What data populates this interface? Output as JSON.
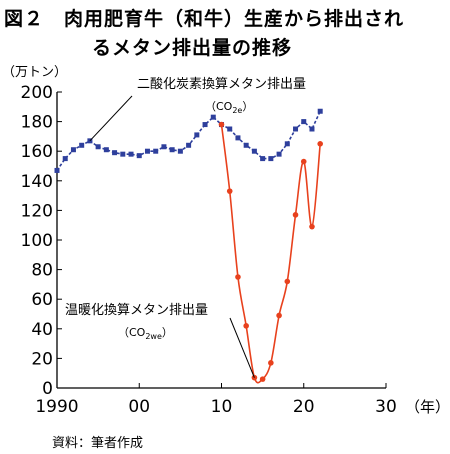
{
  "figure": {
    "title_line1": "図２　肉用肥育牛（和牛）生産から排出され",
    "title_line2": "るメタン排出量の推移",
    "source": "資料：筆者作成"
  },
  "chart_data": {
    "type": "line",
    "ylabel": "（万トン）",
    "xunit": "（年）",
    "xlim": [
      1990,
      2030
    ],
    "ylim": [
      0,
      200
    ],
    "x_ticks": [
      1990,
      2000,
      2010,
      2020,
      2030
    ],
    "x_tick_labels": [
      "1990",
      "00",
      "10",
      "20",
      "30"
    ],
    "y_ticks": [
      0,
      20,
      40,
      60,
      80,
      100,
      120,
      140,
      160,
      180,
      200
    ],
    "grid": false,
    "series": [
      {
        "name": "二酸化炭素換算メタン排出量",
        "unit_label": "（CO",
        "unit_sub": "2e",
        "unit_close": "）",
        "color": "#2e3f9c",
        "marker": "square",
        "x": [
          1990,
          1991,
          1992,
          1993,
          1994,
          1995,
          1996,
          1997,
          1998,
          1999,
          2000,
          2001,
          2002,
          2003,
          2004,
          2005,
          2006,
          2007,
          2008,
          2009,
          2010,
          2011,
          2012,
          2013,
          2014,
          2015,
          2016,
          2017,
          2018,
          2019,
          2020,
          2021,
          2022
        ],
        "values": [
          147,
          155,
          161,
          164,
          167,
          163,
          161,
          159,
          158,
          158,
          157,
          160,
          160,
          163,
          161,
          160,
          164,
          171,
          178,
          183,
          178,
          175,
          169,
          164,
          160,
          155,
          155,
          158,
          165,
          175,
          180,
          175,
          187
        ]
      },
      {
        "name": "温暖化換算メタン排出量",
        "unit_label": "（CO",
        "unit_sub": "2we",
        "unit_close": "）",
        "color": "#e8411d",
        "marker": "circle",
        "x": [
          2010,
          2011,
          2012,
          2013,
          2014,
          2015,
          2016,
          2017,
          2018,
          2019,
          2020,
          2021,
          2022
        ],
        "values": [
          178,
          133,
          75,
          42,
          7,
          6,
          17,
          49,
          72,
          117,
          153,
          109,
          165
        ]
      }
    ]
  }
}
